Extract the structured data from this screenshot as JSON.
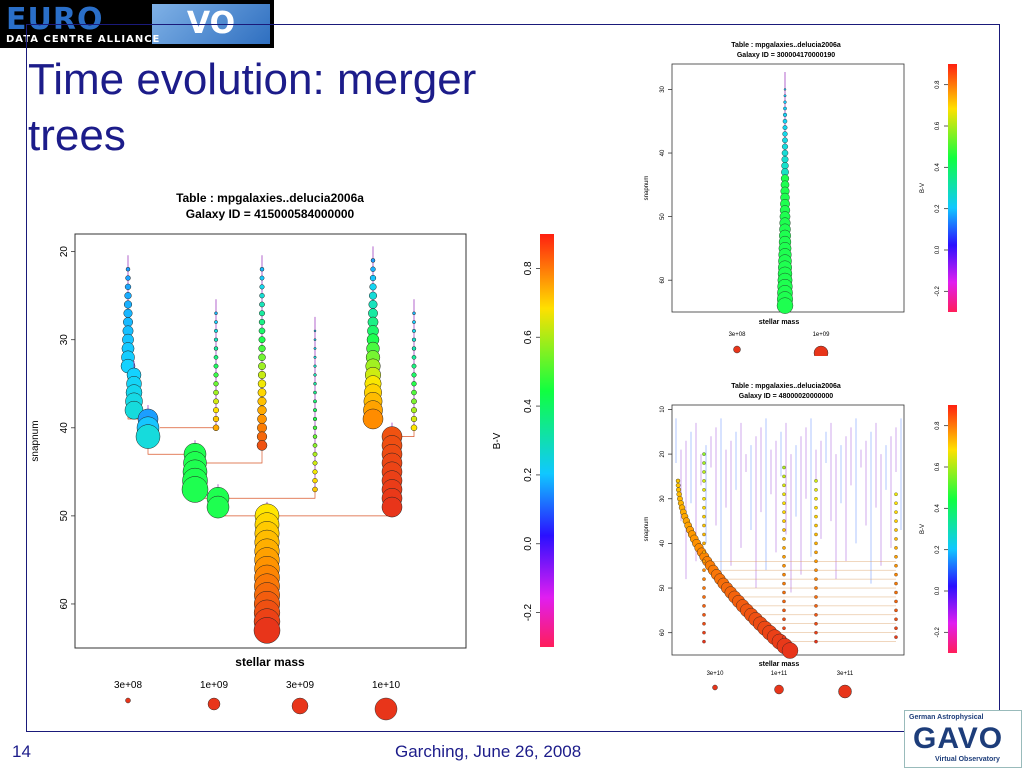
{
  "slide": {
    "title": "Time evolution: merger trees",
    "page_number": "14",
    "footer": "Garching, June 26, 2008"
  },
  "logos": {
    "euro_big": "EURO",
    "euro_vo": "VO",
    "euro_sub": "DATA CENTRE ALLIANCE",
    "gavo_line1": "German Astrophysical",
    "gavo_main": "GAVO",
    "gavo_line3": "Virtual Observatory"
  },
  "colors": {
    "title": "#1c1c8a",
    "trunk_red": "#e8351a"
  },
  "chart_data": [
    {
      "type": "scatter",
      "title": "Table :  mpgalaxies..delucia2006a",
      "subtitle": "Galaxy ID =  415000584000000",
      "xlabel": "stellar mass",
      "ylabel": "snapnum",
      "y_ticks": [
        "20",
        "30",
        "40",
        "50",
        "60"
      ],
      "ylim": [
        18,
        65
      ],
      "y_reversed": true,
      "colorbar_label": "B-V",
      "colorbar_ticks": [
        "-0.2",
        "0.0",
        "0.2",
        "0.4",
        "0.6",
        "0.8"
      ],
      "size_legend": [
        "3e+08",
        "1e+09",
        "3e+09",
        "1e+10"
      ]
    },
    {
      "type": "scatter",
      "title": "Table :  mpgalaxies..delucia2006a",
      "subtitle": "Galaxy ID =  300004170000190",
      "xlabel": "stellar mass",
      "ylabel": "snapnum",
      "y_ticks": [
        "30",
        "40",
        "50",
        "60"
      ],
      "ylim": [
        26,
        65
      ],
      "y_reversed": true,
      "colorbar_label": "B-V",
      "colorbar_ticks": [
        "-0.2",
        "0.0",
        "0.2",
        "0.4",
        "0.6",
        "0.8"
      ],
      "size_legend": [
        "3e+08",
        "1e+09"
      ]
    },
    {
      "type": "scatter",
      "title": "Table :  mpgalaxies..delucia2006a",
      "subtitle": "Galaxy ID =  48000020000000",
      "xlabel": "stellar mass",
      "ylabel": "snapnum",
      "y_ticks": [
        "10",
        "20",
        "30",
        "40",
        "50",
        "60"
      ],
      "ylim": [
        9,
        65
      ],
      "y_reversed": true,
      "colorbar_label": "B-V",
      "colorbar_ticks": [
        "-0.2",
        "0.0",
        "0.2",
        "0.4",
        "0.6",
        "0.8"
      ],
      "size_legend": [
        "3e+10",
        "1e+11",
        "3e+11"
      ]
    }
  ]
}
